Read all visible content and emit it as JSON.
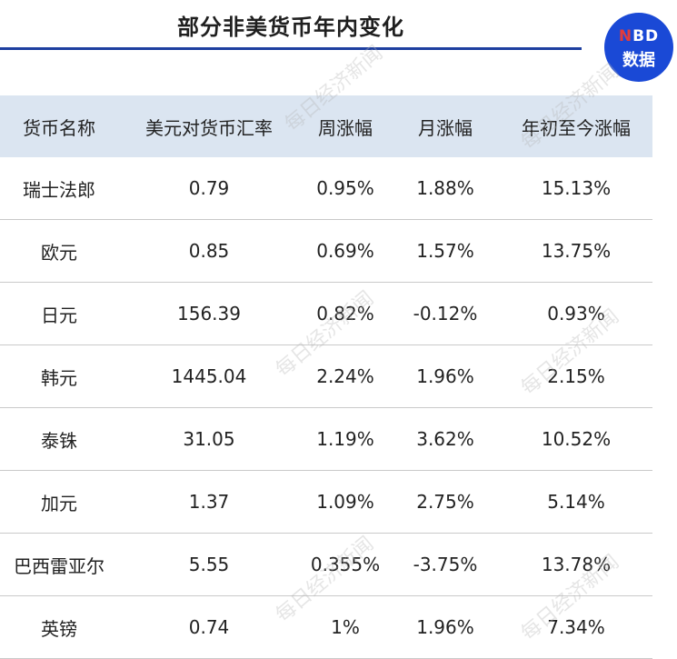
{
  "title": "部分非美货币年内变化",
  "logo": {
    "line1_n": "N",
    "line1_rest": "BD",
    "line2": "数据"
  },
  "headers": [
    "货币名称",
    "美元对货币汇率",
    "周涨幅",
    "月涨幅",
    "年初至今涨幅"
  ],
  "rows": [
    [
      "瑞士法郎",
      "0.79",
      "0.95%",
      "1.88%",
      "15.13%"
    ],
    [
      "欧元",
      "0.85",
      "0.69%",
      "1.57%",
      "13.75%"
    ],
    [
      "日元",
      "156.39",
      "0.82%",
      "-0.12%",
      "0.93%"
    ],
    [
      "韩元",
      "1445.04",
      "2.24%",
      "1.96%",
      "2.15%"
    ],
    [
      "泰铢",
      "31.05",
      "1.19%",
      "3.62%",
      "10.52%"
    ],
    [
      "加元",
      "1.37",
      "1.09%",
      "2.75%",
      "5.14%"
    ],
    [
      "巴西雷亚尔",
      "5.55",
      "0.355%",
      "-3.75%",
      "13.78%"
    ],
    [
      "英镑",
      "0.74",
      "1%",
      "1.96%",
      "7.34%"
    ]
  ],
  "watermark": "每日经济新闻"
}
